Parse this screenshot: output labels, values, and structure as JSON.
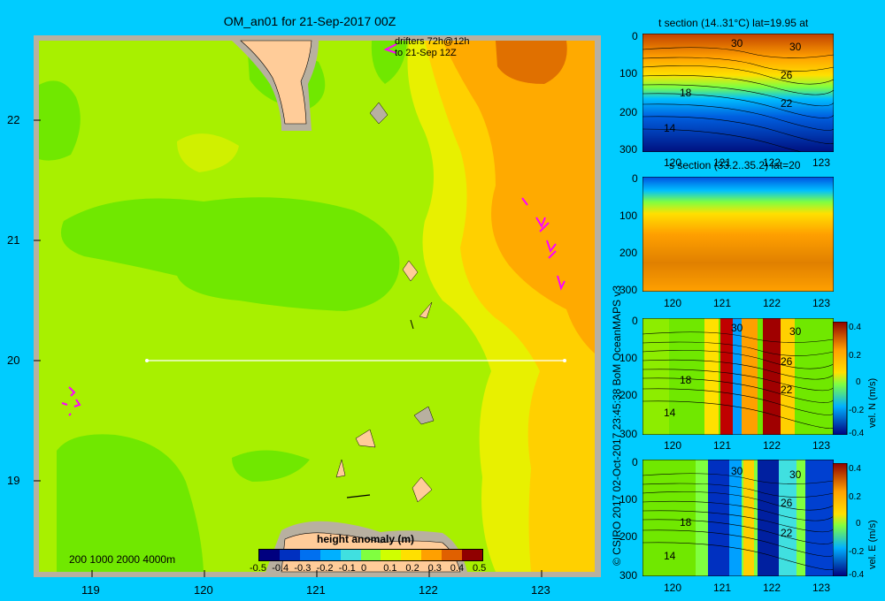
{
  "map": {
    "title": "OM_an01 for 21-Sep-2017 00Z",
    "drifters_line1": "drifters 72h@12h",
    "drifters_line2": "to 21-Sep 12Z",
    "depth_scale": "200 1000 2000 4000m",
    "lat_ticks": [
      "22",
      "21",
      "20",
      "19"
    ],
    "lon_ticks": [
      "119",
      "120",
      "121",
      "122",
      "123"
    ],
    "colorbar": {
      "label": "height anomaly (m)",
      "ticks": [
        "-0.5",
        "-0.4",
        "-0.3",
        "-0.2",
        "-0.1",
        "0",
        "0.1",
        "0.2",
        "0.3",
        "0.4",
        "0.5"
      ],
      "colors": [
        "#00007f",
        "#0030c0",
        "#0070f0",
        "#00b0ff",
        "#40e0e0",
        "#80ff40",
        "#d0ff00",
        "#ffe000",
        "#ffa000",
        "#e06000",
        "#900000"
      ]
    },
    "fill_colors": {
      "base": "#a8f000",
      "low": "#70e800",
      "mid_high": "#e8f000",
      "high": "#ffd000",
      "higher": "#ffaa00",
      "peak": "#e07000",
      "land": "#ffcc99",
      "shelf": "#b8b0a0"
    }
  },
  "credit": "© CSIRO 2017   02-Oct-2017 23:45:38 BoM OceanMAPS v3",
  "sections": [
    {
      "title": "t section (14..31°C) lat=19.95 at",
      "y_ticks": [
        "0",
        "100",
        "200",
        "300"
      ],
      "x_ticks": [
        "120",
        "121",
        "122",
        "123"
      ],
      "contour_labels": [
        "30",
        "30",
        "26",
        "18",
        "22",
        "14"
      ],
      "colorbar_label": "",
      "colorbar_ticks": []
    },
    {
      "title": "s section (33.2..35.2) lat=20",
      "y_ticks": [
        "0",
        "100",
        "200",
        "300"
      ],
      "x_ticks": [
        "120",
        "121",
        "122",
        "123"
      ],
      "contour_labels": [],
      "colorbar_label": "",
      "colorbar_ticks": []
    },
    {
      "title": "",
      "y_ticks": [
        "0",
        "100",
        "200",
        "300"
      ],
      "x_ticks": [
        "120",
        "121",
        "122",
        "123"
      ],
      "contour_labels": [
        "30",
        "30",
        "26",
        "18",
        "22",
        "14"
      ],
      "colorbar_label": "vel. N (m/s)",
      "colorbar_ticks": [
        "0.4",
        "0.2",
        "0",
        "-0.2",
        "-0.4"
      ]
    },
    {
      "title": "",
      "y_ticks": [
        "0",
        "100",
        "200",
        "300"
      ],
      "x_ticks": [
        "120",
        "121",
        "122",
        "123"
      ],
      "contour_labels": [
        "30",
        "30",
        "26",
        "18",
        "22",
        "14"
      ],
      "colorbar_label": "vel. E (m/s)",
      "colorbar_ticks": [
        "0.4",
        "0.2",
        "0",
        "-0.2",
        "-0.4"
      ]
    }
  ]
}
